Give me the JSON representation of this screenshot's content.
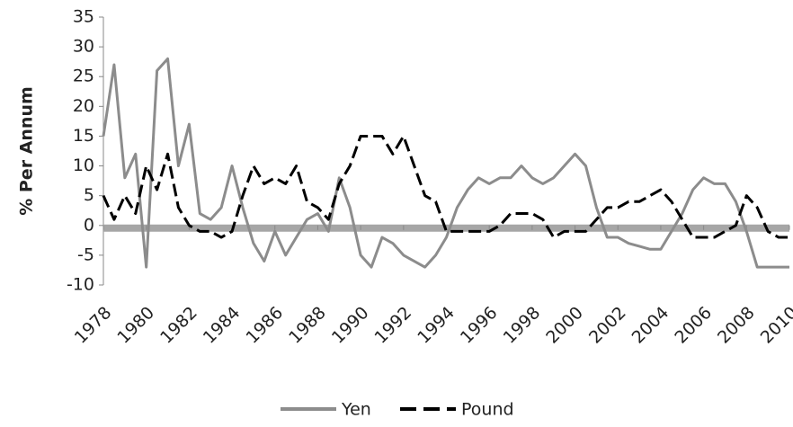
{
  "chart_data": {
    "type": "line",
    "y_label": "% Per Annum",
    "xlim": [
      1978,
      2010
    ],
    "xticks": [
      1978,
      1980,
      1982,
      1984,
      1986,
      1988,
      1990,
      1992,
      1994,
      1996,
      1998,
      2000,
      2002,
      2004,
      2006,
      2008,
      2010
    ],
    "ylim": [
      -10,
      35
    ],
    "yticks": [
      -10,
      -5,
      0,
      5,
      10,
      15,
      20,
      25,
      30,
      35
    ],
    "x": [
      1978,
      1978.5,
      1979,
      1979.5,
      1980,
      1980.5,
      1981,
      1981.5,
      1982,
      1982.5,
      1983,
      1983.5,
      1984,
      1984.5,
      1985,
      1985.5,
      1986,
      1986.5,
      1987,
      1987.5,
      1988,
      1988.5,
      1989,
      1989.5,
      1990,
      1990.5,
      1991,
      1991.5,
      1992,
      1992.5,
      1993,
      1993.5,
      1994,
      1994.5,
      1995,
      1995.5,
      1996,
      1996.5,
      1997,
      1997.5,
      1998,
      1998.5,
      1999,
      1999.5,
      2000,
      2000.5,
      2001,
      2001.5,
      2002,
      2002.5,
      2003,
      2003.5,
      2004,
      2004.5,
      2005,
      2005.5,
      2006,
      2006.5,
      2007,
      2007.5,
      2008,
      2008.5,
      2009,
      2009.5,
      2010
    ],
    "series": [
      {
        "name": "Yen",
        "color": "#8c8c8c",
        "dashed": false,
        "values": [
          15,
          27,
          8,
          12,
          -7,
          26,
          28,
          10,
          17,
          2,
          1,
          3,
          10,
          3,
          -3,
          -6,
          -1,
          -5,
          -2,
          1,
          2,
          -1,
          8,
          3,
          -5,
          -7,
          -2,
          -3,
          -5,
          -6,
          -7,
          -5,
          -2,
          3,
          6,
          8,
          7,
          8,
          8,
          10,
          8,
          7,
          8,
          10,
          12,
          10,
          3,
          -2,
          -2,
          -3,
          -3.5,
          -4,
          -4,
          -1,
          2,
          6,
          8,
          7,
          7,
          4,
          -1,
          -7,
          -7,
          -7,
          -7
        ]
      },
      {
        "name": "Pound",
        "color": "#000000",
        "dashed": true,
        "values": [
          5,
          1,
          5,
          2,
          10,
          6,
          12,
          3,
          0,
          -1,
          -1,
          -2,
          -1,
          5,
          10,
          7,
          8,
          7,
          10,
          4,
          3,
          1,
          7,
          10,
          15,
          15,
          15,
          12,
          15,
          10,
          5,
          4,
          -1,
          -1,
          -1,
          -1,
          -1,
          0,
          2,
          2,
          2,
          1,
          -2,
          -1,
          -1,
          -1,
          1,
          3,
          3,
          4,
          4,
          5,
          6,
          4,
          1,
          -2,
          -2,
          -2,
          -1,
          0,
          5,
          3,
          -1,
          -2,
          -2
        ]
      }
    ]
  }
}
